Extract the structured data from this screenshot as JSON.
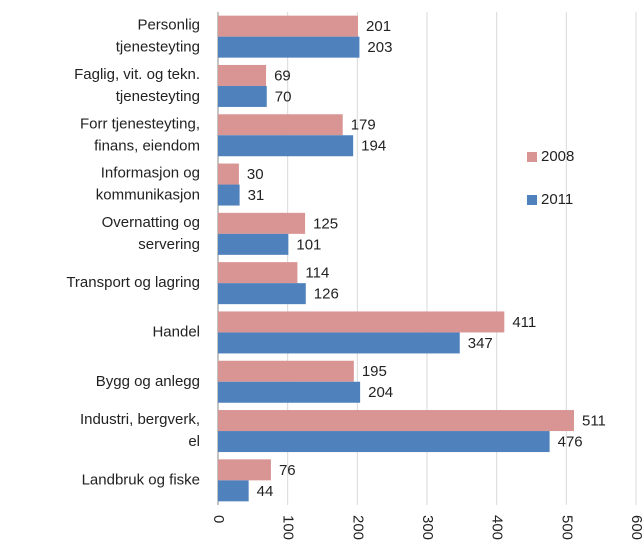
{
  "chart_data": {
    "type": "bar",
    "orientation": "horizontal",
    "categories": [
      "Personlig\ntjenesteyting",
      "Faglig, vit. og tekn.\ntjenesteyting",
      "Forr tjenesteyting,\nfinans, eiendom",
      "Informasjon og\nkommunikasjon",
      "Overnatting og\nservering",
      "Transport og lagring",
      "Handel",
      "Bygg og anlegg",
      "Industri, bergverk,\nel",
      "Landbruk og fiske"
    ],
    "series": [
      {
        "name": "2008",
        "color": "#d99594",
        "values": [
          201,
          69,
          179,
          30,
          125,
          114,
          411,
          195,
          511,
          76
        ]
      },
      {
        "name": "2011",
        "color": "#4f81bd",
        "values": [
          203,
          70,
          194,
          31,
          101,
          126,
          347,
          204,
          476,
          44
        ]
      }
    ],
    "xlim": [
      0,
      600
    ],
    "xticks": [
      0,
      100,
      200,
      300,
      400,
      500,
      600
    ],
    "grid": true,
    "legend": "right"
  }
}
